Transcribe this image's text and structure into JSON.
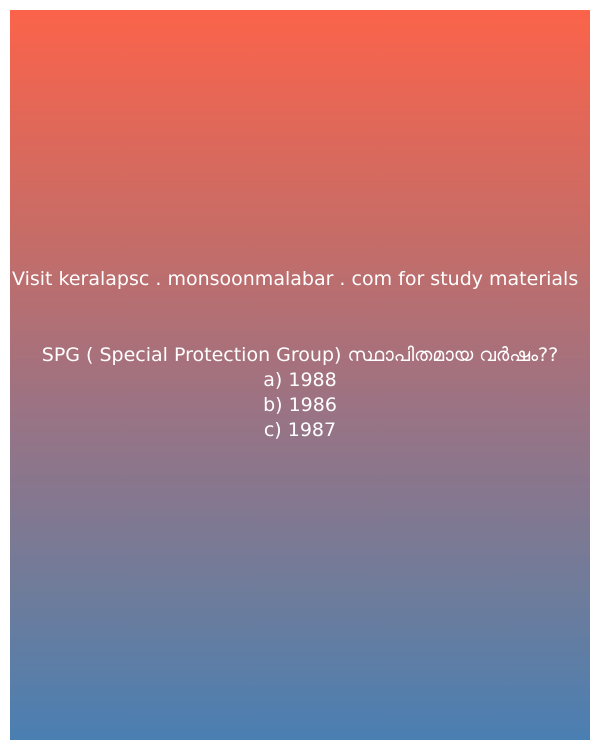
{
  "promo": {
    "text": "Visit keralapsc . monsoonmalabar . com for study materials"
  },
  "quiz": {
    "question": "SPG ( Special Protection Group) സ്ഥാപിതമായ വർഷം??",
    "options": [
      "a) 1988",
      "b) 1986",
      "c) 1987"
    ]
  },
  "colors": {
    "gradient_top": "#fb634a",
    "gradient_bottom": "#4a7fb2",
    "text": "#ffffff"
  }
}
